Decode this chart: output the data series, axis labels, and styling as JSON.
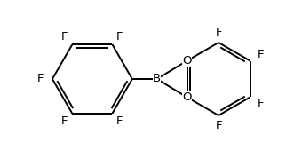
{
  "background_color": "#ffffff",
  "line_color": "#000000",
  "text_color": "#000000",
  "bond_width": 1.4,
  "font_size": 9.5,
  "figsize": [
    3.4,
    1.78
  ],
  "dpi": 100,
  "xlim": [
    -3.3,
    1.8
  ],
  "ylim": [
    -1.2,
    1.2
  ]
}
